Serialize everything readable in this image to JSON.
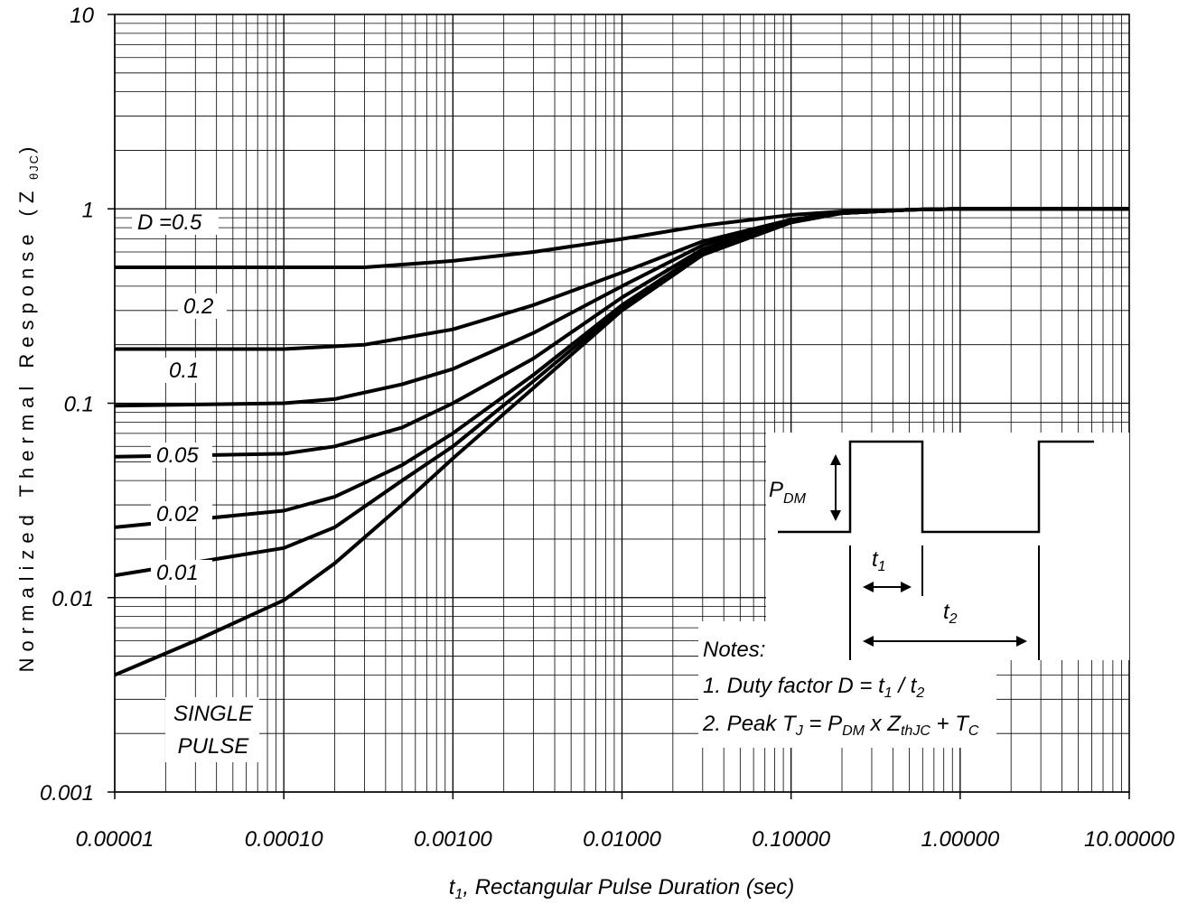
{
  "chart_data": {
    "type": "line",
    "x_scale": "log",
    "y_scale": "log",
    "xlim": [
      1e-05,
      10
    ],
    "ylim": [
      0.001,
      10
    ],
    "grid": true,
    "xlabel": {
      "prefix": "t",
      "sub": "1",
      "rest": ", Rectangular Pulse Duration (sec)"
    },
    "ylabel": {
      "text": "Normalized Thermal Response (Z",
      "sub": "θJC",
      "close": ")"
    },
    "x_ticks": [
      {
        "value": 1e-05,
        "label": "0.00001"
      },
      {
        "value": 0.0001,
        "label": "0.00010"
      },
      {
        "value": 0.001,
        "label": "0.00100"
      },
      {
        "value": 0.01,
        "label": "0.01000"
      },
      {
        "value": 0.1,
        "label": "0.10000"
      },
      {
        "value": 1,
        "label": "1.00000"
      },
      {
        "value": 10,
        "label": "10.00000"
      }
    ],
    "y_ticks": [
      {
        "value": 10,
        "label": "10"
      },
      {
        "value": 1,
        "label": "1"
      },
      {
        "value": 0.1,
        "label": "0.1"
      },
      {
        "value": 0.01,
        "label": "0.01"
      },
      {
        "value": 0.001,
        "label": "0.001"
      }
    ],
    "series": [
      {
        "name": "D =0.5",
        "x": [
          1e-05,
          0.0001,
          0.0003,
          0.001,
          0.003,
          0.01,
          0.03,
          0.1,
          0.2,
          0.5,
          1,
          10
        ],
        "y": [
          0.5,
          0.5,
          0.5,
          0.54,
          0.6,
          0.7,
          0.82,
          0.93,
          0.97,
          0.99,
          1.0,
          1.0
        ]
      },
      {
        "name": "0.2",
        "x": [
          1e-05,
          0.0001,
          0.0003,
          0.001,
          0.003,
          0.01,
          0.03,
          0.1,
          0.2,
          0.5,
          1,
          10
        ],
        "y": [
          0.19,
          0.19,
          0.2,
          0.24,
          0.32,
          0.47,
          0.68,
          0.88,
          0.95,
          0.99,
          1.0,
          1.0
        ]
      },
      {
        "name": "0.1",
        "x": [
          1e-05,
          0.0001,
          0.0002,
          0.0005,
          0.001,
          0.003,
          0.01,
          0.03,
          0.1,
          0.2,
          0.5,
          1,
          10
        ],
        "y": [
          0.097,
          0.1,
          0.105,
          0.125,
          0.15,
          0.23,
          0.4,
          0.65,
          0.88,
          0.95,
          0.99,
          1.0,
          1.0
        ]
      },
      {
        "name": "0.05",
        "x": [
          1e-05,
          0.0001,
          0.0002,
          0.0005,
          0.001,
          0.003,
          0.01,
          0.03,
          0.1,
          0.2,
          0.5,
          1,
          10
        ],
        "y": [
          0.053,
          0.055,
          0.06,
          0.075,
          0.1,
          0.17,
          0.35,
          0.62,
          0.87,
          0.95,
          0.99,
          1.0,
          1.0
        ]
      },
      {
        "name": "0.02",
        "x": [
          1e-05,
          0.0001,
          0.0002,
          0.0005,
          0.001,
          0.003,
          0.01,
          0.03,
          0.1,
          0.2,
          0.5,
          1,
          10
        ],
        "y": [
          0.023,
          0.028,
          0.033,
          0.048,
          0.07,
          0.14,
          0.32,
          0.6,
          0.86,
          0.95,
          0.99,
          1.0,
          1.0
        ]
      },
      {
        "name": "0.01",
        "x": [
          1e-05,
          0.0001,
          0.0002,
          0.0005,
          0.001,
          0.003,
          0.01,
          0.03,
          0.1,
          0.2,
          0.5,
          1,
          10
        ],
        "y": [
          0.013,
          0.018,
          0.023,
          0.04,
          0.06,
          0.13,
          0.31,
          0.59,
          0.86,
          0.95,
          0.99,
          1.0,
          1.0
        ]
      },
      {
        "name": "SINGLE PULSE",
        "x": [
          1e-05,
          3e-05,
          0.0001,
          0.0002,
          0.0005,
          0.001,
          0.003,
          0.01,
          0.03,
          0.1,
          0.2,
          0.5,
          1,
          10
        ],
        "y": [
          0.004,
          0.006,
          0.0097,
          0.015,
          0.03,
          0.052,
          0.12,
          0.3,
          0.58,
          0.85,
          0.95,
          0.99,
          1.0,
          1.0
        ]
      }
    ],
    "curve_labels": [
      {
        "series": 0,
        "text": "D =0.5"
      },
      {
        "series": 1,
        "text": "0.2"
      },
      {
        "series": 2,
        "text": "0.1"
      },
      {
        "series": 3,
        "text": "0.05"
      },
      {
        "series": 4,
        "text": "0.02"
      },
      {
        "series": 5,
        "text": "0.01"
      }
    ],
    "single_pulse_label": [
      "SINGLE",
      "PULSE"
    ],
    "inset": {
      "pdm": {
        "main": "P",
        "sub": "DM"
      },
      "t1": {
        "main": "t",
        "sub": "1"
      },
      "t2": {
        "main": "t",
        "sub": "2"
      }
    },
    "notes": {
      "title": "Notes:",
      "line1": [
        {
          "t": "1. Duty factor D = t"
        },
        {
          "t": "1",
          "sub": true
        },
        {
          "t": " / t"
        },
        {
          "t": "2",
          "sub": true
        }
      ],
      "line2": [
        {
          "t": "2. Peak T"
        },
        {
          "t": "J",
          "sub": true
        },
        {
          "t": " = P"
        },
        {
          "t": "DM",
          "sub": true
        },
        {
          "t": " x Z"
        },
        {
          "t": "thJC",
          "sub": true
        },
        {
          "t": " + T"
        },
        {
          "t": "C",
          "sub": true
        }
      ]
    }
  }
}
